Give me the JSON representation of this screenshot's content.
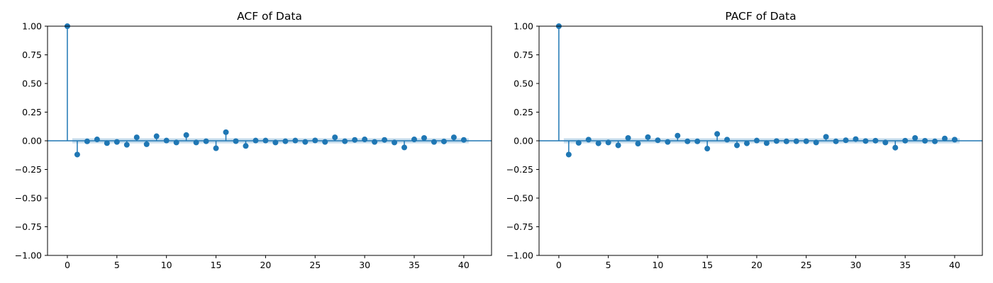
{
  "colors": {
    "marker": "#1f77b4",
    "band": "#1f77b4",
    "background": "#ffffff",
    "axis": "#000000"
  },
  "chart_data": [
    {
      "id": "acf",
      "type": "scatter",
      "style": "stem",
      "title": "ACF of Data",
      "xlabel": "",
      "ylabel": "",
      "xlim": [
        -2,
        42.8
      ],
      "ylim": [
        -1.0,
        1.0
      ],
      "xticks": [
        0,
        5,
        10,
        15,
        20,
        25,
        30,
        35,
        40
      ],
      "yticks": [
        -1.0,
        -0.75,
        -0.5,
        -0.25,
        0.0,
        0.25,
        0.5,
        0.75,
        1.0
      ],
      "ytick_labels": [
        "−1.00",
        "−0.75",
        "−0.50",
        "−0.25",
        "0.00",
        "0.25",
        "0.50",
        "0.75",
        "1.00"
      ],
      "grid": false,
      "x": [
        0,
        1,
        2,
        3,
        4,
        5,
        6,
        7,
        8,
        9,
        10,
        11,
        12,
        13,
        14,
        15,
        16,
        17,
        18,
        19,
        20,
        21,
        22,
        23,
        24,
        25,
        26,
        27,
        28,
        29,
        30,
        31,
        32,
        33,
        34,
        35,
        36,
        37,
        38,
        39,
        40
      ],
      "values": [
        1.0,
        -0.12,
        -0.005,
        0.012,
        -0.02,
        -0.01,
        -0.035,
        0.03,
        -0.03,
        0.04,
        0.002,
        -0.015,
        0.05,
        -0.015,
        -0.004,
        -0.065,
        0.075,
        -0.003,
        -0.045,
        0.002,
        0.002,
        -0.015,
        -0.004,
        0.002,
        -0.01,
        0.003,
        -0.01,
        0.03,
        -0.004,
        0.008,
        0.012,
        -0.01,
        0.008,
        -0.015,
        -0.058,
        0.012,
        0.025,
        -0.01,
        -0.006,
        0.03,
        0.008
      ],
      "confidence_band": 0.022
    },
    {
      "id": "pacf",
      "type": "scatter",
      "style": "stem",
      "title": "PACF of Data",
      "xlabel": "",
      "ylabel": "",
      "xlim": [
        -2,
        42.8
      ],
      "ylim": [
        -1.0,
        1.0
      ],
      "xticks": [
        0,
        5,
        10,
        15,
        20,
        25,
        30,
        35,
        40
      ],
      "yticks": [
        -1.0,
        -0.75,
        -0.5,
        -0.25,
        0.0,
        0.25,
        0.5,
        0.75,
        1.0
      ],
      "ytick_labels": [
        "−1.00",
        "−0.75",
        "−0.50",
        "−0.25",
        "0.00",
        "0.25",
        "0.50",
        "0.75",
        "1.00"
      ],
      "grid": false,
      "x": [
        0,
        1,
        2,
        3,
        4,
        5,
        6,
        7,
        8,
        9,
        10,
        11,
        12,
        13,
        14,
        15,
        16,
        17,
        18,
        19,
        20,
        21,
        22,
        23,
        24,
        25,
        26,
        27,
        28,
        29,
        30,
        31,
        32,
        33,
        34,
        35,
        36,
        37,
        38,
        39,
        40
      ],
      "values": [
        1.0,
        -0.12,
        -0.018,
        0.01,
        -0.022,
        -0.015,
        -0.04,
        0.025,
        -0.025,
        0.032,
        0.005,
        -0.01,
        0.045,
        -0.005,
        -0.005,
        -0.068,
        0.06,
        0.01,
        -0.04,
        -0.022,
        0.002,
        -0.02,
        -0.002,
        -0.005,
        -0.004,
        -0.004,
        -0.015,
        0.035,
        -0.005,
        0.005,
        0.015,
        -0.002,
        0.001,
        -0.015,
        -0.06,
        0.001,
        0.025,
        0.0,
        -0.005,
        0.02,
        0.01
      ],
      "confidence_band": 0.022
    }
  ]
}
